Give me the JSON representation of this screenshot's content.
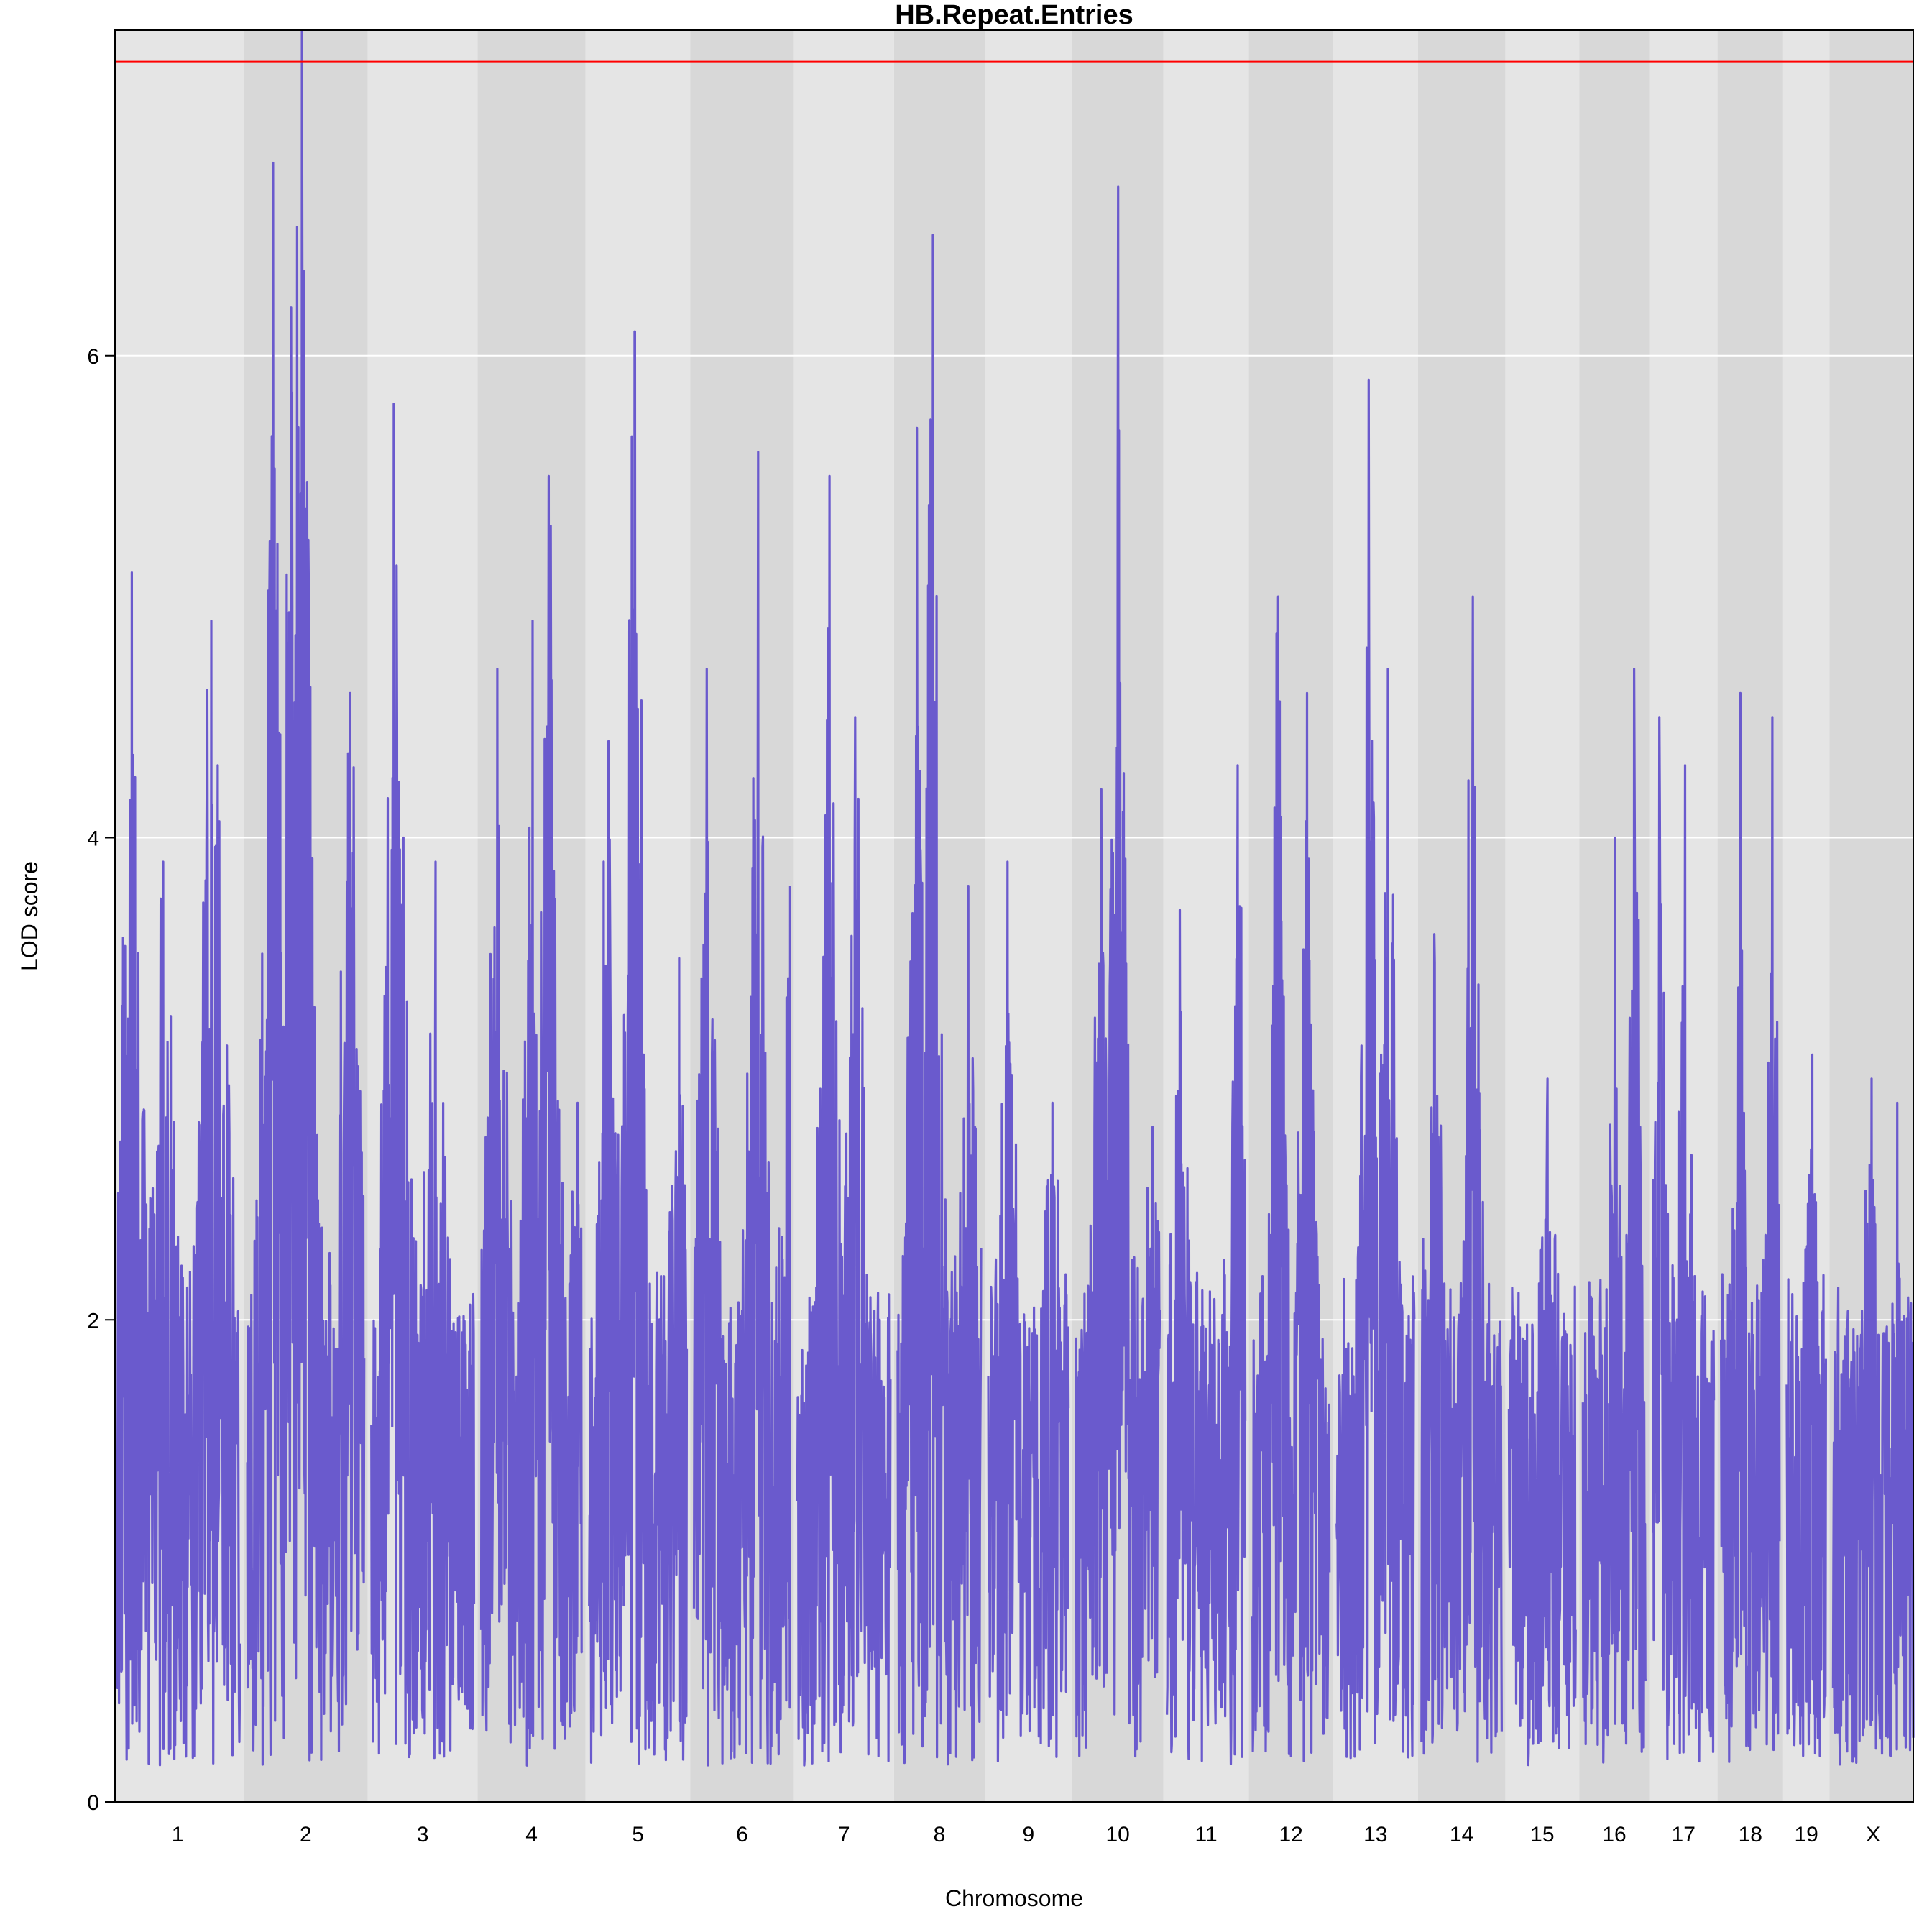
{
  "chart_data": {
    "type": "line",
    "title": "HB.Repeat.Entries",
    "xlabel": "Chromosome",
    "ylabel": "LOD score",
    "ylim": [
      0,
      7.35
    ],
    "yticks": [
      0,
      2,
      4,
      6
    ],
    "grid": "horizontal",
    "threshold": 7.22,
    "colors": {
      "line": "#6a5acd",
      "threshold": "#ff0000",
      "band_light": "#e5e5e5",
      "band_dark": "#d8d8d8",
      "grid": "#ffffff"
    },
    "chromosomes": [
      {
        "label": "1",
        "length": 195,
        "peaks": [
          [
            26,
            5.1
          ],
          [
            75,
            3.9
          ],
          [
            150,
            4.9
          ],
          [
            160,
            4.3
          ]
        ]
      },
      {
        "label": "2",
        "length": 182,
        "peaks": [
          [
            40,
            6.8
          ],
          [
            68,
            6.2
          ],
          [
            85,
            7.4
          ],
          [
            160,
            4.6
          ]
        ]
      },
      {
        "label": "3",
        "length": 160,
        "peaks": [
          [
            35,
            5.8
          ],
          [
            50,
            4.0
          ],
          [
            100,
            3.9
          ]
        ]
      },
      {
        "label": "4",
        "length": 157,
        "peaks": [
          [
            25,
            4.7
          ],
          [
            80,
            4.9
          ],
          [
            105,
            5.5
          ],
          [
            150,
            2.9
          ]
        ]
      },
      {
        "label": "5",
        "length": 152,
        "peaks": [
          [
            30,
            4.4
          ],
          [
            71,
            6.1
          ],
          [
            140,
            3.5
          ]
        ]
      },
      {
        "label": "6",
        "length": 150,
        "peaks": [
          [
            20,
            4.7
          ],
          [
            100,
            5.6
          ],
          [
            150,
            3.8
          ]
        ]
      },
      {
        "label": "7",
        "length": 145,
        "peaks": [
          [
            50,
            5.5
          ],
          [
            90,
            4.5
          ]
        ]
      },
      {
        "label": "8",
        "length": 130,
        "peaks": [
          [
            30,
            5.7
          ],
          [
            55,
            6.5
          ],
          [
            110,
            3.8
          ]
        ]
      },
      {
        "label": "9",
        "length": 125,
        "peaks": [
          [
            30,
            3.9
          ],
          [
            100,
            2.9
          ]
        ]
      },
      {
        "label": "10",
        "length": 131,
        "peaks": [
          [
            40,
            4.2
          ],
          [
            66,
            6.7
          ],
          [
            120,
            2.8
          ]
        ]
      },
      {
        "label": "11",
        "length": 122,
        "peaks": [
          [
            20,
            3.7
          ],
          [
            110,
            4.3
          ]
        ]
      },
      {
        "label": "12",
        "length": 120,
        "peaks": [
          [
            40,
            5.0
          ],
          [
            85,
            4.6
          ]
        ]
      },
      {
        "label": "13",
        "length": 121,
        "peaks": [
          [
            50,
            5.9
          ],
          [
            80,
            4.7
          ]
        ]
      },
      {
        "label": "14",
        "length": 125,
        "peaks": [
          [
            20,
            3.6
          ],
          [
            80,
            5.0
          ]
        ]
      },
      {
        "label": "15",
        "length": 104,
        "peaks": [
          [
            60,
            3.0
          ]
        ]
      },
      {
        "label": "16",
        "length": 98,
        "peaks": [
          [
            50,
            4.0
          ],
          [
            80,
            4.7
          ]
        ]
      },
      {
        "label": "17",
        "length": 95,
        "peaks": [
          [
            10,
            4.5
          ],
          [
            50,
            4.3
          ]
        ]
      },
      {
        "label": "18",
        "length": 91,
        "peaks": [
          [
            30,
            4.6
          ],
          [
            80,
            4.5
          ]
        ]
      },
      {
        "label": "19",
        "length": 61,
        "peaks": [
          [
            40,
            3.1
          ]
        ]
      },
      {
        "label": "X",
        "length": 125,
        "peaks": [
          [
            60,
            3.0
          ],
          [
            100,
            2.9
          ]
        ]
      }
    ]
  }
}
